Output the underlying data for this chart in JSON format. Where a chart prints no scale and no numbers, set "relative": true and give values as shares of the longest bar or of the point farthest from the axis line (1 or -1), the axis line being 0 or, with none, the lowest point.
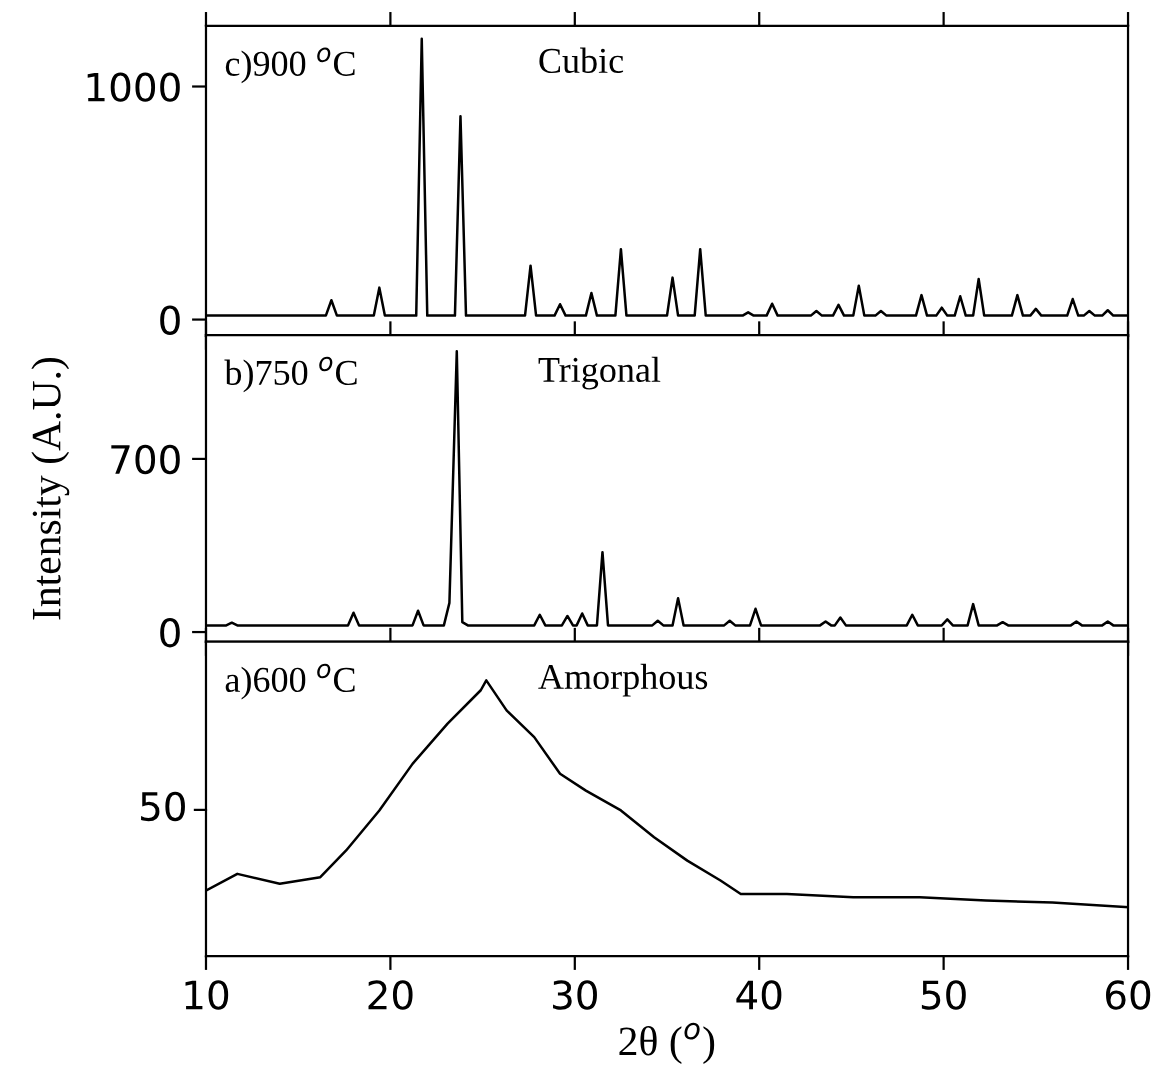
{
  "chart_data": [
    {
      "type": "line",
      "annotations": [
        "c)900 $^{o}$C",
        "Cubic"
      ],
      "xlim": [
        10,
        60
      ],
      "xticks": [
        {
          "value": 10,
          "label": null
        },
        {
          "value": 20,
          "label": null
        },
        {
          "value": 30,
          "label": null
        },
        {
          "value": 40,
          "label": null
        },
        {
          "value": 50,
          "label": null
        },
        {
          "value": 60,
          "label": null
        }
      ],
      "ylim": [
        -70,
        1260
      ],
      "yticks": [
        0,
        1000
      ],
      "tick_labels": "y",
      "series": [
        {
          "color": "#000000",
          "x": [
            10,
            16.5,
            16.8,
            17.1,
            19.1,
            19.4,
            19.7,
            21.4,
            21.7,
            22.0,
            23.5,
            23.8,
            24.1,
            27.3,
            27.6,
            27.9,
            28.9,
            29.2,
            29.5,
            30.6,
            30.9,
            31.2,
            32.2,
            32.5,
            32.8,
            35.0,
            35.3,
            35.6,
            36.5,
            36.8,
            37.1,
            39.1,
            39.4,
            39.7,
            40.4,
            40.7,
            41.0,
            42.8,
            43.1,
            43.4,
            44.0,
            44.3,
            44.6,
            45.1,
            45.4,
            45.7,
            46.3,
            46.6,
            46.9,
            48.5,
            48.8,
            49.1,
            49.6,
            49.9,
            50.2,
            50.6,
            50.9,
            51.2,
            51.6,
            51.9,
            52.2,
            53.7,
            54.0,
            54.3,
            54.7,
            55.0,
            55.3,
            56.7,
            57.0,
            57.3,
            57.6,
            57.9,
            58.2,
            58.6,
            58.9,
            59.2,
            60
          ],
          "values": [
            17,
            17,
            83,
            17,
            17,
            137,
            17,
            17,
            1205,
            17,
            17,
            872,
            17,
            17,
            231,
            17,
            17,
            66,
            17,
            17,
            114,
            17,
            17,
            302,
            17,
            17,
            180,
            17,
            17,
            302,
            17,
            17,
            31,
            17,
            17,
            68,
            17,
            17,
            37,
            17,
            17,
            63,
            17,
            17,
            145,
            17,
            17,
            37,
            17,
            17,
            105,
            17,
            17,
            51,
            17,
            17,
            100,
            17,
            17,
            174,
            17,
            17,
            105,
            17,
            17,
            46,
            17,
            17,
            88,
            17,
            17,
            37,
            17,
            17,
            40,
            17,
            17
          ]
        }
      ]
    },
    {
      "type": "line",
      "annotations": [
        "b)750 $^{o}$C",
        "Trigonal"
      ],
      "ylabel": "Intensity (A.U.)",
      "xlim": [
        10,
        60
      ],
      "xticks": [
        {
          "value": 10,
          "label": null
        },
        {
          "value": 20,
          "label": null
        },
        {
          "value": 30,
          "label": null
        },
        {
          "value": 40,
          "label": null
        },
        {
          "value": 50,
          "label": null
        },
        {
          "value": 60,
          "label": null
        }
      ],
      "ylim": [
        -40,
        1200
      ],
      "yticks": [
        0,
        700
      ],
      "tick_labels": "y",
      "series": [
        {
          "color": "#000000",
          "x": [
            10,
            11.1,
            11.4,
            11.7,
            17.7,
            18.0,
            18.3,
            21.2,
            21.5,
            21.8,
            22.9,
            23.2,
            23.6,
            23.9,
            24.2,
            27.8,
            28.1,
            28.4,
            29.3,
            29.6,
            29.9,
            30.1,
            30.4,
            30.7,
            31.2,
            31.5,
            31.8,
            34.2,
            34.5,
            34.8,
            35.3,
            35.6,
            35.9,
            38.1,
            38.4,
            38.7,
            39.5,
            39.8,
            40.1,
            43.3,
            43.6,
            43.9,
            44.1,
            44.4,
            44.7,
            48.0,
            48.3,
            48.6,
            49.9,
            50.2,
            50.5,
            51.3,
            51.6,
            51.9,
            52.9,
            53.2,
            53.5,
            56.9,
            57.2,
            57.5,
            58.6,
            58.9,
            59.2,
            60
          ],
          "values": [
            27,
            27,
            38,
            27,
            27,
            78,
            27,
            27,
            86,
            27,
            27,
            118,
            1135,
            40,
            27,
            27,
            70,
            27,
            27,
            65,
            27,
            27,
            75,
            27,
            27,
            323,
            27,
            27,
            46,
            27,
            27,
            137,
            27,
            27,
            46,
            27,
            27,
            94,
            27,
            27,
            43,
            27,
            27,
            59,
            27,
            27,
            70,
            27,
            27,
            51,
            27,
            27,
            113,
            27,
            27,
            40,
            27,
            27,
            43,
            27,
            27,
            43,
            27,
            27
          ]
        }
      ]
    },
    {
      "type": "line",
      "annotations": [
        "a)600 $^{o}$C",
        "Amorphous",
        "50"
      ],
      "xlabel": "2θ ($^{o}$)",
      "relative": true,
      "xlim": [
        10,
        60
      ],
      "xticks": [
        10,
        20,
        30,
        40,
        50,
        60
      ],
      "series": [
        {
          "color": "#000000",
          "x": [
            10,
            11.7,
            14.0,
            16.2,
            17.6,
            19.4,
            21.2,
            23.1,
            24.9,
            25.2,
            26.3,
            27.8,
            29.2,
            30.6,
            32.5,
            34.3,
            36.1,
            37.9,
            39.0,
            41.5,
            45.1,
            48.7,
            52.3,
            55.9,
            60
          ],
          "values": [
            0.237,
            0.298,
            0.262,
            0.286,
            0.383,
            0.528,
            0.697,
            0.843,
            0.964,
            1.0,
            0.891,
            0.794,
            0.661,
            0.6,
            0.528,
            0.431,
            0.346,
            0.274,
            0.225,
            0.225,
            0.213,
            0.213,
            0.201,
            0.194,
            0.177
          ]
        }
      ]
    }
  ]
}
